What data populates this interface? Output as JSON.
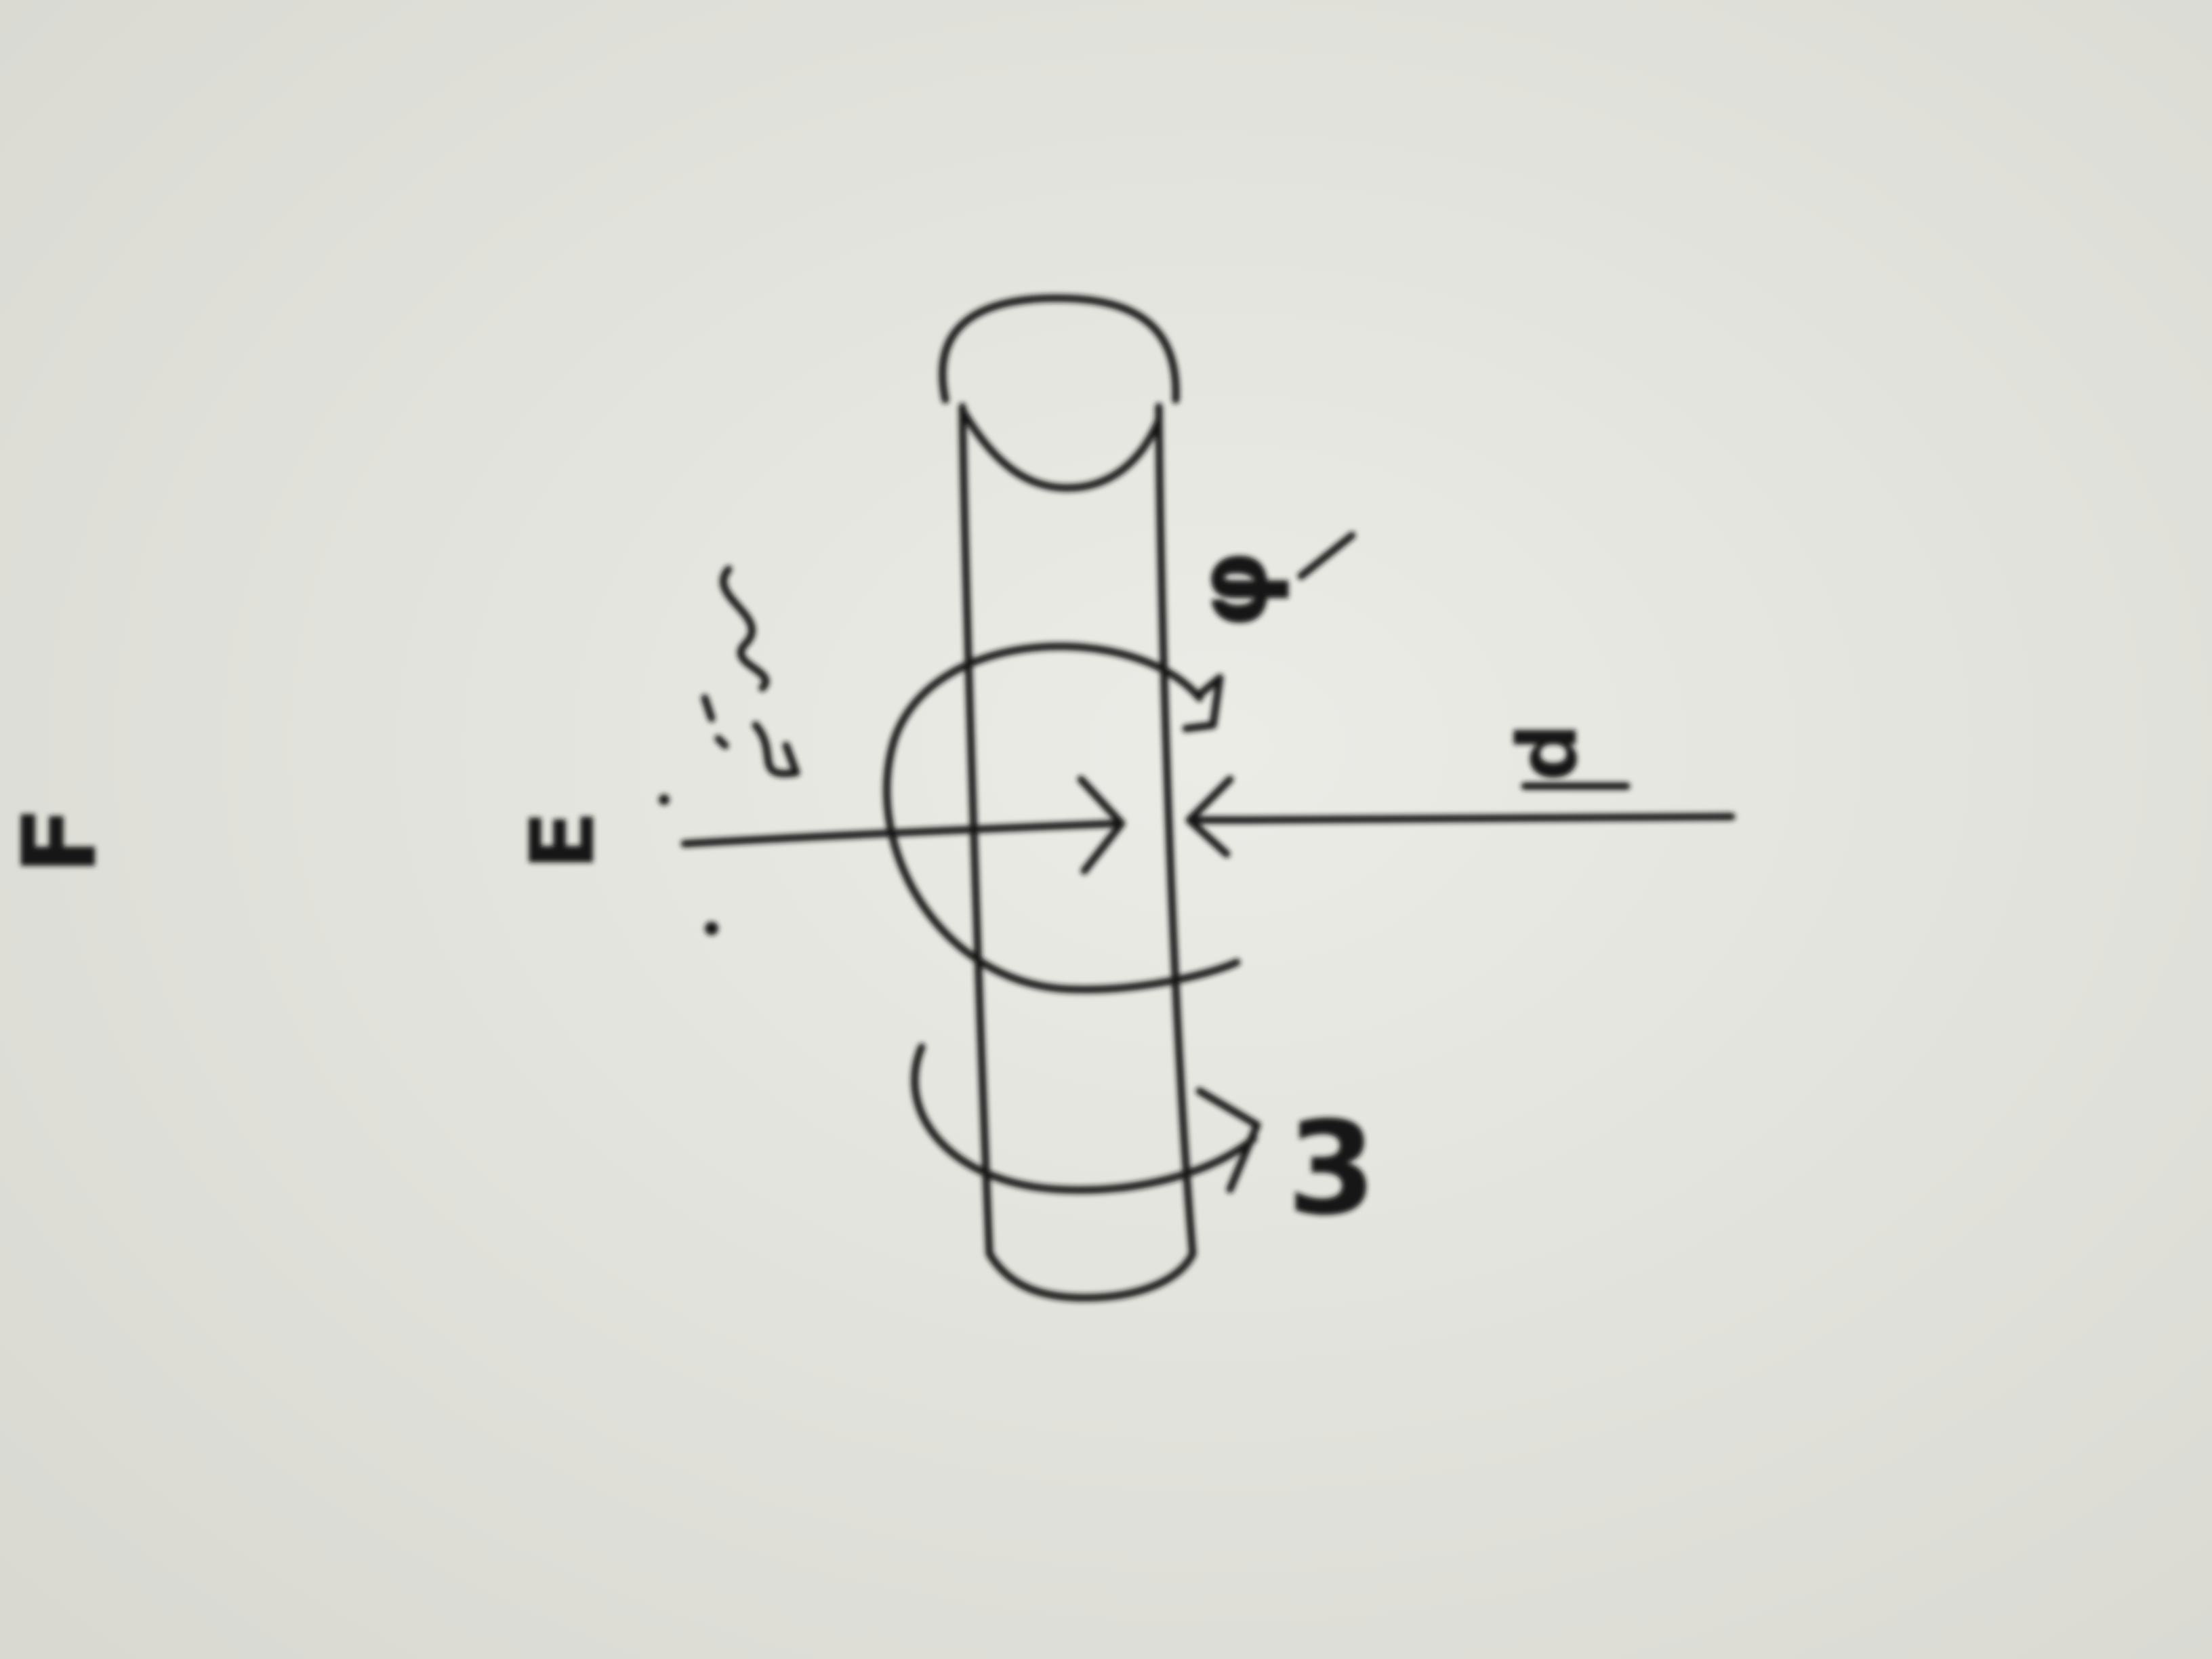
{
  "diagram": {
    "labels": {
      "edge_mark": "F",
      "left_label": "E",
      "right_label": "d",
      "upper_arc_label": "φ",
      "lower_arc_label": "3"
    },
    "colors": {
      "paper": "#e6e6e0",
      "ink": "#151515"
    }
  }
}
